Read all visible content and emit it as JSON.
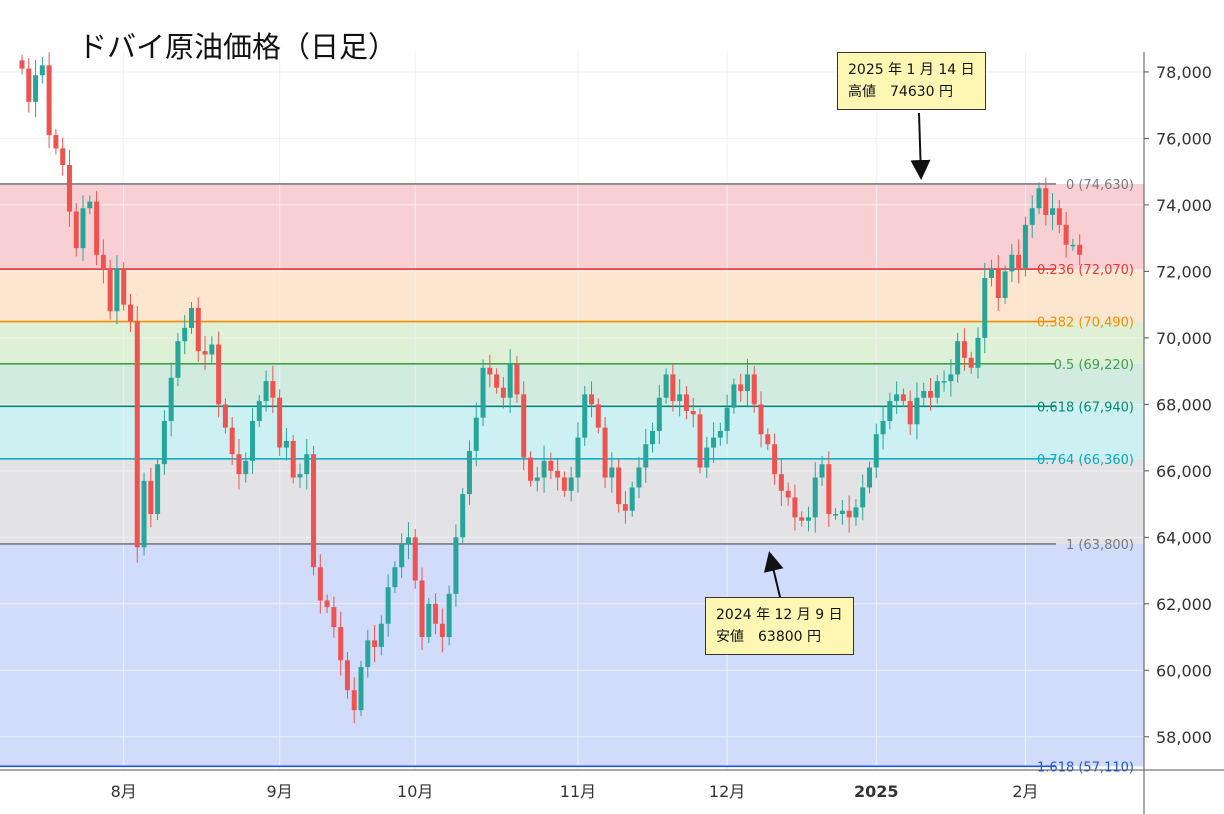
{
  "chart_data": {
    "type": "candlestick",
    "title": "ドバイ原油価格（日足）",
    "y_range": [
      57000,
      78600
    ],
    "y_ticks": [
      "78,000",
      "76,000",
      "74,000",
      "72,000",
      "70,000",
      "68,000",
      "66,000",
      "64,000",
      "62,000",
      "60,000",
      "58,000"
    ],
    "y_tick_values": [
      78000,
      76000,
      74000,
      72000,
      70000,
      68000,
      66000,
      64000,
      62000,
      60000,
      58000
    ],
    "x_labels": [
      {
        "text": "8月",
        "idx": 15
      },
      {
        "text": "9月",
        "idx": 38
      },
      {
        "text": "10月",
        "idx": 58
      },
      {
        "text": "11月",
        "idx": 82
      },
      {
        "text": "12月",
        "idx": 104
      },
      {
        "text": "2025",
        "idx": 126
      },
      {
        "text": "2月",
        "idx": 148
      }
    ],
    "fib_levels": [
      {
        "label": "0 (74,630)",
        "value": 74630,
        "color": "#787b86",
        "fill": "#f8d0d3"
      },
      {
        "label": "0.236 (72,070)",
        "value": 72070,
        "color": "#e53935",
        "fill": "#fde6cf"
      },
      {
        "label": "0.382 (70,490)",
        "value": 70490,
        "color": "#fb8c00",
        "fill": "#def0d5"
      },
      {
        "label": "0.5 (69,220)",
        "value": 69220,
        "color": "#43a047",
        "fill": "#d2ebe1"
      },
      {
        "label": "0.618 (67,940)",
        "value": 67940,
        "color": "#00897b",
        "fill": "#cdf0f2"
      },
      {
        "label": "0.764 (66,360)",
        "value": 66360,
        "color": "#00acc1",
        "fill": "#e3e3e5"
      },
      {
        "label": "1 (63,800)",
        "value": 63800,
        "color": "#787b86",
        "fill": "#d1dcfb"
      },
      {
        "label": "1.618 (57,110)",
        "value": 57110,
        "color": "#1e55e0",
        "fill": null
      }
    ],
    "closes": [
      78100,
      77100,
      77900,
      78200,
      76100,
      75700,
      75200,
      73800,
      72700,
      73900,
      74100,
      72500,
      72100,
      70800,
      72100,
      71000,
      70500,
      63700,
      65700,
      64700,
      66200,
      67500,
      68800,
      69900,
      70300,
      70900,
      69600,
      69500,
      69800,
      68000,
      67300,
      66500,
      65900,
      66300,
      67500,
      68100,
      68700,
      68200,
      66700,
      66900,
      65800,
      65900,
      66500,
      63100,
      62100,
      61900,
      61300,
      60300,
      59400,
      58800,
      60100,
      60900,
      60700,
      61400,
      62500,
      63100,
      63800,
      64000,
      62700,
      61000,
      62000,
      61400,
      61000,
      62300,
      64000,
      65300,
      66600,
      67600,
      69100,
      68900,
      68500,
      68200,
      69200,
      68300,
      66400,
      65700,
      65800,
      66300,
      66000,
      65800,
      65400,
      65800,
      67000,
      68300,
      68000,
      67300,
      65800,
      66100,
      65000,
      64800,
      65500,
      66100,
      66800,
      67200,
      68200,
      68900,
      68100,
      68300,
      67800,
      67700,
      66100,
      66700,
      67000,
      67200,
      67900,
      68600,
      68400,
      68900,
      68000,
      67100,
      66800,
      65900,
      65400,
      65200,
      64600,
      64500,
      64600,
      65800,
      66200,
      64700,
      64700,
      64800,
      64600,
      64900,
      65500,
      66100,
      67100,
      67500,
      68100,
      68300,
      68100,
      67400,
      68200,
      68400,
      68200,
      68700,
      68700,
      68900,
      69900,
      69400,
      69100,
      70000,
      71800,
      72100,
      71200,
      72000,
      72500,
      72100,
      73400,
      73900,
      74500,
      73700,
      73900,
      73400,
      72800,
      72800,
      72500
    ]
  },
  "annotations": [
    {
      "line1": "2025 年 1 月 14 日",
      "label": "高値",
      "value": "74630 円"
    },
    {
      "line1": "2024 年 12 月 9 日",
      "label": "安値",
      "value": "63800 円"
    }
  ],
  "colors": {
    "up": "#26a69a",
    "down": "#ef5350",
    "grid": "#eef0f3",
    "axis_text": "#333333"
  }
}
